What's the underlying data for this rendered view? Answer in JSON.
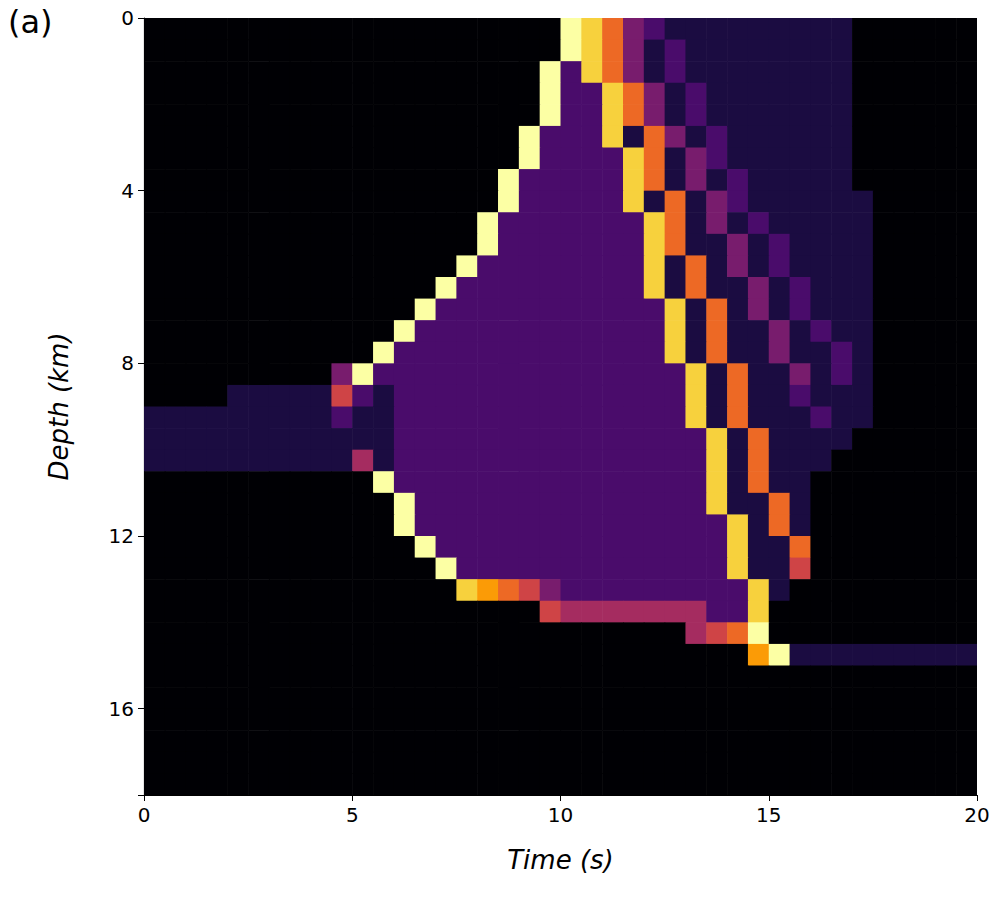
{
  "chart_data": {
    "type": "heatmap",
    "panel_label": "(a)",
    "x_label": "Time (s)",
    "y_label": "Depth (km)",
    "xlim": [
      0,
      20
    ],
    "xticks": [
      0,
      5,
      10,
      15,
      20
    ],
    "ylim": [
      0,
      18
    ],
    "yticks": [
      0,
      4,
      8,
      12,
      16
    ],
    "grid": false,
    "time_edges": [
      0,
      0.5,
      1,
      1.5,
      2,
      2.5,
      3,
      3.5,
      4,
      4.5,
      5,
      5.5,
      6,
      6.5,
      7,
      7.5,
      8,
      8.5,
      9,
      9.5,
      10,
      10.5,
      11,
      11.5,
      12,
      12.5,
      13,
      13.5,
      14,
      14.5,
      15,
      15.5,
      16,
      16.5,
      17,
      17.5,
      18,
      18.5,
      19,
      19.5,
      20
    ],
    "depth_edges": [
      0,
      0.5,
      1,
      1.5,
      2,
      2.5,
      3,
      3.5,
      4,
      4.5,
      5,
      5.5,
      6,
      6.5,
      7,
      7.5,
      8,
      8.5,
      9,
      9.5,
      10,
      10.5,
      11,
      11.5,
      12,
      12.5,
      13,
      13.5,
      14,
      14.5,
      15,
      15.5,
      16,
      16.5,
      17,
      17.5,
      18
    ],
    "value_range": [
      0,
      9
    ],
    "cells": [
      [
        0,
        0,
        0,
        0,
        0,
        0,
        0,
        0,
        0,
        0,
        0,
        0,
        0,
        0,
        0,
        0,
        0,
        0,
        0,
        0,
        9,
        8,
        6,
        3,
        2,
        1,
        1,
        1,
        1,
        1,
        1,
        1,
        1,
        1,
        0,
        0,
        0,
        0,
        0,
        0
      ],
      [
        0,
        0,
        0,
        0,
        0,
        0,
        0,
        0,
        0,
        0,
        0,
        0,
        0,
        0,
        0,
        0,
        0,
        0,
        0,
        0,
        9,
        8,
        6,
        3,
        1,
        2,
        1,
        1,
        1,
        1,
        1,
        1,
        1,
        1,
        0,
        0,
        0,
        0,
        0,
        0
      ],
      [
        0,
        0,
        0,
        0,
        0,
        0,
        0,
        0,
        0,
        0,
        0,
        0,
        0,
        0,
        0,
        0,
        0,
        0,
        0,
        9,
        2,
        8,
        6,
        3,
        1,
        2,
        1,
        1,
        1,
        1,
        1,
        1,
        1,
        1,
        0,
        0,
        0,
        0,
        0,
        0
      ],
      [
        0,
        0,
        0,
        0,
        0,
        0,
        0,
        0,
        0,
        0,
        0,
        0,
        0,
        0,
        0,
        0,
        0,
        0,
        0,
        9,
        2,
        2,
        8,
        6,
        3,
        1,
        2,
        1,
        1,
        1,
        1,
        1,
        1,
        1,
        0,
        0,
        0,
        0,
        0,
        0
      ],
      [
        0,
        0,
        0,
        0,
        0,
        0,
        0,
        0,
        0,
        0,
        0,
        0,
        0,
        0,
        0,
        0,
        0,
        0,
        0,
        9,
        2,
        2,
        8,
        6,
        3,
        1,
        2,
        1,
        1,
        1,
        1,
        1,
        1,
        1,
        0,
        0,
        0,
        0,
        0,
        0
      ],
      [
        0,
        0,
        0,
        0,
        0,
        0,
        0,
        0,
        0,
        0,
        0,
        0,
        0,
        0,
        0,
        0,
        0,
        0,
        9,
        2,
        2,
        2,
        8,
        1,
        6,
        3,
        1,
        2,
        1,
        1,
        1,
        1,
        1,
        1,
        0,
        0,
        0,
        0,
        0,
        0
      ],
      [
        0,
        0,
        0,
        0,
        0,
        0,
        0,
        0,
        0,
        0,
        0,
        0,
        0,
        0,
        0,
        0,
        0,
        0,
        9,
        2,
        2,
        2,
        2,
        8,
        6,
        1,
        3,
        2,
        1,
        1,
        1,
        1,
        1,
        1,
        0,
        0,
        0,
        0,
        0,
        0
      ],
      [
        0,
        0,
        0,
        0,
        0,
        0,
        0,
        0,
        0,
        0,
        0,
        0,
        0,
        0,
        0,
        0,
        0,
        9,
        2,
        2,
        2,
        2,
        2,
        8,
        6,
        1,
        3,
        1,
        2,
        1,
        1,
        1,
        1,
        1,
        0,
        0,
        0,
        0,
        0,
        0
      ],
      [
        0,
        0,
        0,
        0,
        0,
        0,
        0,
        0,
        0,
        0,
        0,
        0,
        0,
        0,
        0,
        0,
        0,
        9,
        2,
        2,
        2,
        2,
        2,
        8,
        1,
        6,
        1,
        3,
        2,
        1,
        1,
        1,
        1,
        1,
        1,
        0,
        0,
        0,
        0,
        0
      ],
      [
        0,
        0,
        0,
        0,
        0,
        0,
        0,
        0,
        0,
        0,
        0,
        0,
        0,
        0,
        0,
        0,
        9,
        2,
        2,
        2,
        2,
        2,
        2,
        2,
        8,
        6,
        1,
        3,
        1,
        2,
        1,
        1,
        1,
        1,
        1,
        0,
        0,
        0,
        0,
        0
      ],
      [
        0,
        0,
        0,
        0,
        0,
        0,
        0,
        0,
        0,
        0,
        0,
        0,
        0,
        0,
        0,
        0,
        9,
        2,
        2,
        2,
        2,
        2,
        2,
        2,
        8,
        6,
        1,
        1,
        3,
        1,
        2,
        1,
        1,
        1,
        1,
        0,
        0,
        0,
        0,
        0
      ],
      [
        0,
        0,
        0,
        0,
        0,
        0,
        0,
        0,
        0,
        0,
        0,
        0,
        0,
        0,
        0,
        9,
        2,
        2,
        2,
        2,
        2,
        2,
        2,
        2,
        8,
        1,
        6,
        1,
        3,
        1,
        2,
        1,
        1,
        1,
        1,
        0,
        0,
        0,
        0,
        0
      ],
      [
        0,
        0,
        0,
        0,
        0,
        0,
        0,
        0,
        0,
        0,
        0,
        0,
        0,
        0,
        9,
        2,
        2,
        2,
        2,
        2,
        2,
        2,
        2,
        2,
        8,
        1,
        6,
        1,
        1,
        3,
        1,
        2,
        1,
        1,
        1,
        0,
        0,
        0,
        0,
        0
      ],
      [
        0,
        0,
        0,
        0,
        0,
        0,
        0,
        0,
        0,
        0,
        0,
        0,
        0,
        9,
        2,
        2,
        2,
        2,
        2,
        2,
        2,
        2,
        2,
        2,
        2,
        8,
        1,
        6,
        1,
        3,
        1,
        2,
        1,
        1,
        1,
        0,
        0,
        0,
        0,
        0
      ],
      [
        0,
        0,
        0,
        0,
        0,
        0,
        0,
        0,
        0,
        0,
        0,
        0,
        9,
        2,
        2,
        2,
        2,
        2,
        2,
        2,
        2,
        2,
        2,
        2,
        2,
        8,
        1,
        6,
        1,
        1,
        3,
        1,
        2,
        1,
        1,
        0,
        0,
        0,
        0,
        0
      ],
      [
        0,
        0,
        0,
        0,
        0,
        0,
        0,
        0,
        0,
        0,
        0,
        9,
        2,
        2,
        2,
        2,
        2,
        2,
        2,
        2,
        2,
        2,
        2,
        2,
        2,
        8,
        1,
        6,
        1,
        1,
        3,
        1,
        1,
        2,
        1,
        0,
        0,
        0,
        0,
        0
      ],
      [
        0,
        0,
        0,
        0,
        0,
        0,
        0,
        0,
        0,
        3,
        9,
        2,
        2,
        2,
        2,
        2,
        2,
        2,
        2,
        2,
        2,
        2,
        2,
        2,
        2,
        2,
        8,
        1,
        6,
        1,
        1,
        3,
        1,
        2,
        1,
        0,
        0,
        0,
        0,
        0
      ],
      [
        0,
        0,
        0,
        0,
        1,
        1,
        1,
        1,
        1,
        5,
        2,
        1,
        2,
        2,
        2,
        2,
        2,
        2,
        2,
        2,
        2,
        2,
        2,
        2,
        2,
        2,
        8,
        1,
        6,
        1,
        1,
        2,
        1,
        1,
        1,
        0,
        0,
        0,
        0,
        0
      ],
      [
        1,
        1,
        1,
        1,
        1,
        1,
        1,
        1,
        1,
        2,
        1,
        1,
        2,
        2,
        2,
        2,
        2,
        2,
        2,
        2,
        2,
        2,
        2,
        2,
        2,
        2,
        8,
        1,
        6,
        1,
        1,
        1,
        2,
        1,
        1,
        0,
        0,
        0,
        0,
        0
      ],
      [
        1,
        1,
        1,
        1,
        1,
        1,
        1,
        1,
        1,
        1,
        1,
        1,
        2,
        2,
        2,
        2,
        2,
        2,
        2,
        2,
        2,
        2,
        2,
        2,
        2,
        2,
        2,
        8,
        1,
        6,
        1,
        1,
        1,
        1,
        0,
        0,
        0,
        0,
        0,
        0
      ],
      [
        1,
        1,
        1,
        1,
        1,
        1,
        1,
        1,
        1,
        1,
        4,
        1,
        2,
        2,
        2,
        2,
        2,
        2,
        2,
        2,
        2,
        2,
        2,
        2,
        2,
        2,
        2,
        8,
        1,
        6,
        1,
        1,
        1,
        0,
        0,
        0,
        0,
        0,
        0,
        0
      ],
      [
        0,
        0,
        0,
        0,
        0,
        0,
        0,
        0,
        0,
        0,
        0,
        9,
        2,
        2,
        2,
        2,
        2,
        2,
        2,
        2,
        2,
        2,
        2,
        2,
        2,
        2,
        2,
        8,
        1,
        6,
        1,
        1,
        0,
        0,
        0,
        0,
        0,
        0,
        0,
        0
      ],
      [
        0,
        0,
        0,
        0,
        0,
        0,
        0,
        0,
        0,
        0,
        0,
        0,
        9,
        2,
        2,
        2,
        2,
        2,
        2,
        2,
        2,
        2,
        2,
        2,
        2,
        2,
        2,
        8,
        1,
        1,
        6,
        1,
        0,
        0,
        0,
        0,
        0,
        0,
        0,
        0
      ],
      [
        0,
        0,
        0,
        0,
        0,
        0,
        0,
        0,
        0,
        0,
        0,
        0,
        9,
        2,
        2,
        2,
        2,
        2,
        2,
        2,
        2,
        2,
        2,
        2,
        2,
        2,
        2,
        2,
        8,
        1,
        6,
        1,
        0,
        0,
        0,
        0,
        0,
        0,
        0,
        0
      ],
      [
        0,
        0,
        0,
        0,
        0,
        0,
        0,
        0,
        0,
        0,
        0,
        0,
        0,
        9,
        2,
        2,
        2,
        2,
        2,
        2,
        2,
        2,
        2,
        2,
        2,
        2,
        2,
        2,
        8,
        1,
        1,
        6,
        0,
        0,
        0,
        0,
        0,
        0,
        0,
        0
      ],
      [
        0,
        0,
        0,
        0,
        0,
        0,
        0,
        0,
        0,
        0,
        0,
        0,
        0,
        0,
        9,
        2,
        2,
        2,
        2,
        2,
        2,
        2,
        2,
        2,
        2,
        2,
        2,
        2,
        8,
        1,
        1,
        5,
        0,
        0,
        0,
        0,
        0,
        0,
        0,
        0
      ],
      [
        0,
        0,
        0,
        0,
        0,
        0,
        0,
        0,
        0,
        0,
        0,
        0,
        0,
        0,
        0,
        8,
        7,
        6,
        5,
        3,
        2,
        2,
        2,
        2,
        2,
        2,
        2,
        2,
        2,
        8,
        1,
        0,
        0,
        0,
        0,
        0,
        0,
        0,
        0,
        0
      ],
      [
        0,
        0,
        0,
        0,
        0,
        0,
        0,
        0,
        0,
        0,
        0,
        0,
        0,
        0,
        0,
        0,
        0,
        0,
        0,
        5,
        4,
        4,
        4,
        4,
        4,
        4,
        4,
        2,
        2,
        8,
        0,
        0,
        0,
        0,
        0,
        0,
        0,
        0,
        0,
        0
      ],
      [
        0,
        0,
        0,
        0,
        0,
        0,
        0,
        0,
        0,
        0,
        0,
        0,
        0,
        0,
        0,
        0,
        0,
        0,
        0,
        0,
        0,
        0,
        0,
        0,
        0,
        0,
        4,
        5,
        6,
        9,
        0,
        0,
        0,
        0,
        0,
        0,
        0,
        0,
        0,
        0
      ],
      [
        0,
        0,
        0,
        0,
        0,
        0,
        0,
        0,
        0,
        0,
        0,
        0,
        0,
        0,
        0,
        0,
        0,
        0,
        0,
        0,
        0,
        0,
        0,
        0,
        0,
        0,
        0,
        0,
        0,
        7,
        9,
        1,
        1,
        1,
        1,
        1,
        1,
        1,
        1,
        1
      ],
      [
        0,
        0,
        0,
        0,
        0,
        0,
        0,
        0,
        0,
        0,
        0,
        0,
        0,
        0,
        0,
        0,
        0,
        0,
        0,
        0,
        0,
        0,
        0,
        0,
        0,
        0,
        0,
        0,
        0,
        0,
        0,
        0,
        0,
        0,
        0,
        0,
        0,
        0,
        0,
        0
      ],
      [
        0,
        0,
        0,
        0,
        0,
        0,
        0,
        0,
        0,
        0,
        0,
        0,
        0,
        0,
        0,
        0,
        0,
        0,
        0,
        0,
        0,
        0,
        0,
        0,
        0,
        0,
        0,
        0,
        0,
        0,
        0,
        0,
        0,
        0,
        0,
        0,
        0,
        0,
        0,
        0
      ],
      [
        0,
        0,
        0,
        0,
        0,
        0,
        0,
        0,
        0,
        0,
        0,
        0,
        0,
        0,
        0,
        0,
        0,
        0,
        0,
        0,
        0,
        0,
        0,
        0,
        0,
        0,
        0,
        0,
        0,
        0,
        0,
        0,
        0,
        0,
        0,
        0,
        0,
        0,
        0,
        0
      ],
      [
        0,
        0,
        0,
        0,
        0,
        0,
        0,
        0,
        0,
        0,
        0,
        0,
        0,
        0,
        0,
        0,
        0,
        0,
        0,
        0,
        0,
        0,
        0,
        0,
        0,
        0,
        0,
        0,
        0,
        0,
        0,
        0,
        0,
        0,
        0,
        0,
        0,
        0,
        0,
        0
      ],
      [
        0,
        0,
        0,
        0,
        0,
        0,
        0,
        0,
        0,
        0,
        0,
        0,
        0,
        0,
        0,
        0,
        0,
        0,
        0,
        0,
        0,
        0,
        0,
        0,
        0,
        0,
        0,
        0,
        0,
        0,
        0,
        0,
        0,
        0,
        0,
        0,
        0,
        0,
        0,
        0
      ],
      [
        0,
        0,
        0,
        0,
        0,
        0,
        0,
        0,
        0,
        0,
        0,
        0,
        0,
        0,
        0,
        0,
        0,
        0,
        0,
        0,
        0,
        0,
        0,
        0,
        0,
        0,
        0,
        0,
        0,
        0,
        0,
        0,
        0,
        0,
        0,
        0,
        0,
        0,
        0,
        0
      ]
    ]
  }
}
